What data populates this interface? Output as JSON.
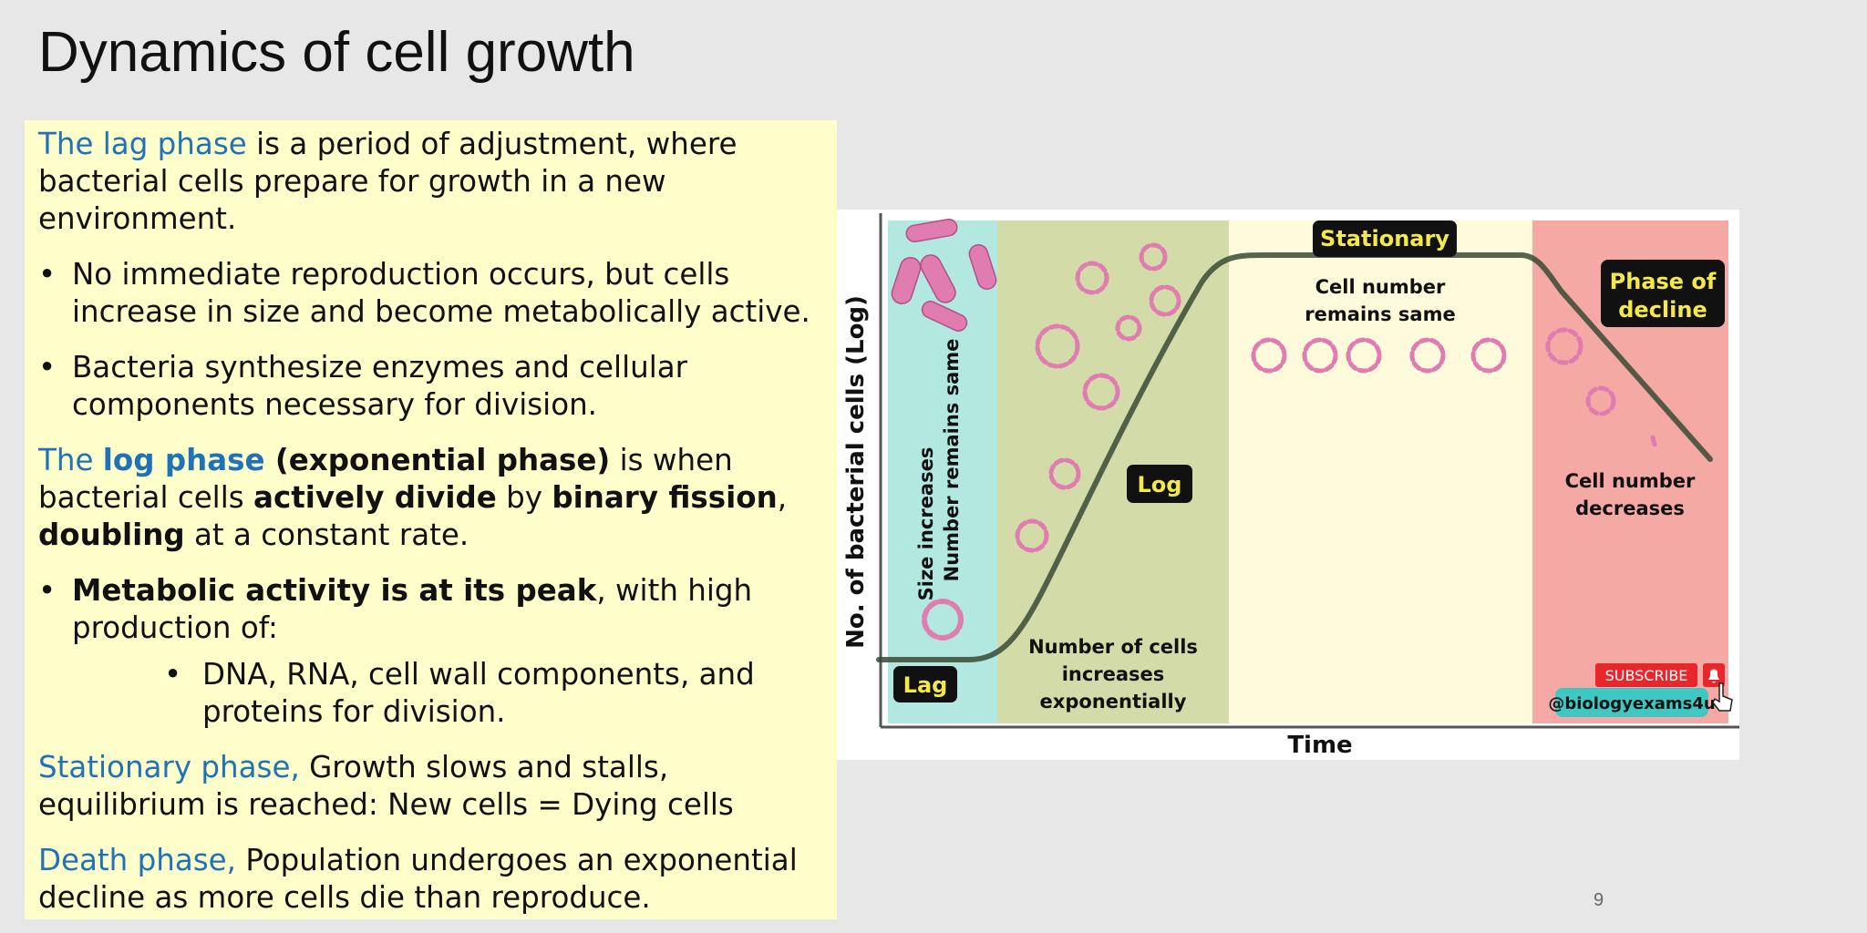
{
  "slide": {
    "title": "Dynamics of cell growth",
    "number": "9"
  },
  "text": {
    "lag_intro": {
      "highlight": "The lag phase",
      "rest": " is a period of adjustment, where bacterial cells prepare for growth in a new environment."
    },
    "lag_bullet1": "No immediate reproduction occurs, but cells increase in size and become metabolically active.",
    "lag_bullet2": "Bacteria synthesize enzymes and cellular components necessary for division.",
    "log_intro": {
      "hl1": "The ",
      "hl2": "log phase",
      "b1": " (exponential phase)",
      "t1": " is when bacterial cells ",
      "b2": "actively divide",
      "t2": " by ",
      "b3": "binary fission",
      "t3": ", ",
      "b4": "doubling",
      "t4": " at a constant rate."
    },
    "log_bullet1": {
      "bold": "Metabolic activity is at its peak",
      "rest": ", with high production of:"
    },
    "log_subbullet1": "DNA, RNA, cell wall components, and proteins for division.",
    "stationary": {
      "highlight": "Stationary phase,",
      "rest": " Growth slows and stalls, equilibrium is reached: New cells = Dying cells"
    },
    "death": {
      "highlight": "Death phase,",
      "rest": " Population undergoes an exponential decline as more cells die than reproduce."
    }
  },
  "diagram": {
    "y_axis_label": "No. of bacterial cells (Log)",
    "x_axis_label": "Time",
    "lag_label": "Lag",
    "lag_caption_line1": "Size increases",
    "lag_caption_line2": "Number remains same",
    "log_label": "Log",
    "log_caption_line1": "Number of cells",
    "log_caption_line2": "increases",
    "log_caption_line3": "exponentially",
    "stationary_label": "Stationary",
    "stationary_caption_line1": "Cell number",
    "stationary_caption_line2": "remains same",
    "decline_label_line1": "Phase of",
    "decline_label_line2": "decline",
    "decline_caption_line1": "Cell number",
    "decline_caption_line2": "decreases",
    "subscribe_label": "SUBSCRIBE",
    "channel_handle": "@biologyexams4u",
    "colors": {
      "lag_zone": "#b3e8e0",
      "log_zone": "#d3dca8",
      "stationary_zone": "#fdfbdc",
      "decline_zone": "#f4a9a5",
      "curve": "#3a4a35",
      "label_bg": "#111111",
      "label_text_yellow": "#f5e84a",
      "bacteria": "#e07cb0",
      "subscribe": "#e8262b",
      "handle_bg": "#3ec7c3"
    }
  }
}
